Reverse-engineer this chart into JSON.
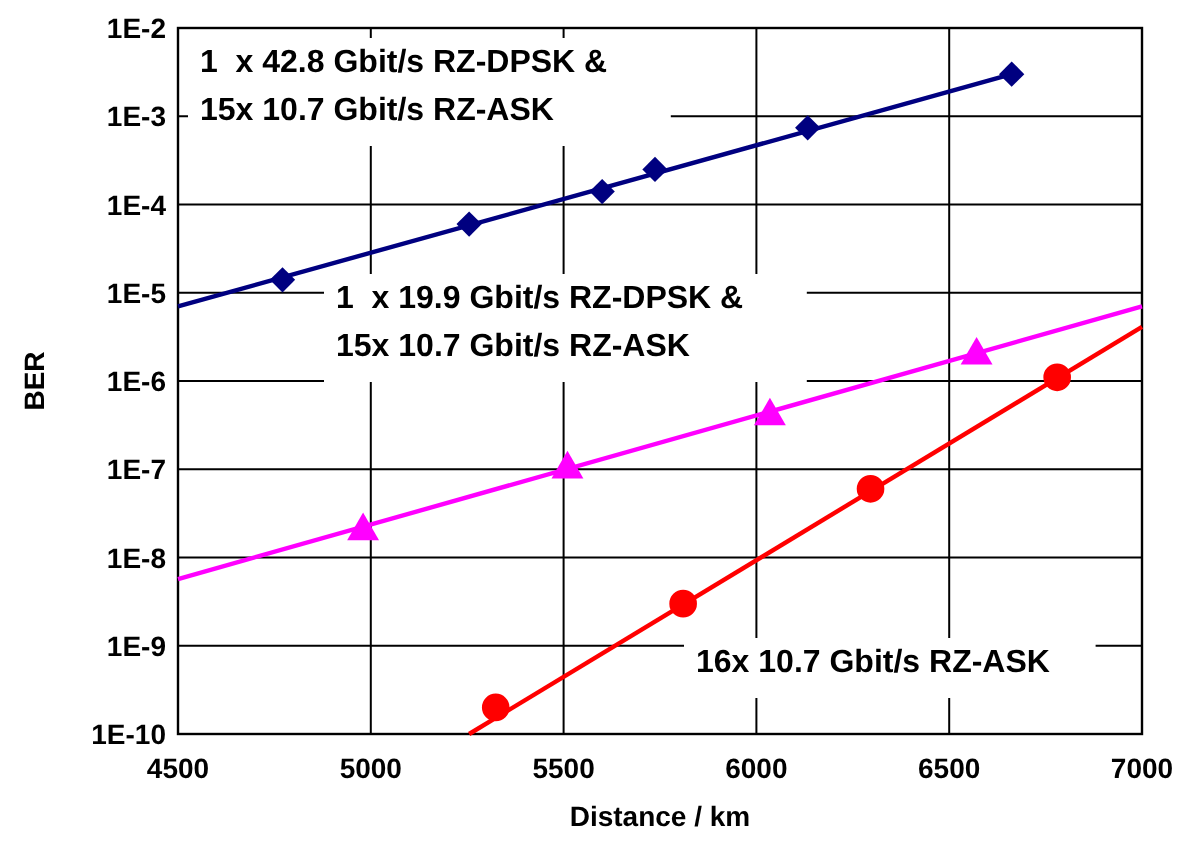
{
  "chart_data": {
    "type": "scatter",
    "xlabel": "Distance / km",
    "ylabel": "BER",
    "log": "y",
    "grid": true,
    "xlim": [
      4500,
      7000
    ],
    "xticks": [
      4500,
      5000,
      5500,
      6000,
      6500,
      7000
    ],
    "ylim": [
      1e-10,
      0.01
    ],
    "yticks": [
      {
        "value": 1e-10,
        "label": "1E-10"
      },
      {
        "value": 1e-09,
        "label": "1E-9"
      },
      {
        "value": 1e-08,
        "label": "1E-8"
      },
      {
        "value": 1e-07,
        "label": "1E-7"
      },
      {
        "value": 1e-06,
        "label": "1E-6"
      },
      {
        "value": 1e-05,
        "label": "1E-5"
      },
      {
        "value": 0.0001,
        "label": "1E-4"
      },
      {
        "value": 0.001,
        "label": "1E-3"
      },
      {
        "value": 0.01,
        "label": "1E-2"
      }
    ],
    "series": [
      {
        "type": "line",
        "color": "#000080",
        "x": [
          4500,
          6662
        ],
        "values": [
          7e-06,
          0.003
        ]
      },
      {
        "type": "line",
        "color": "#ff00ff",
        "x": [
          4500,
          7000
        ],
        "values": [
          5.7e-09,
          7e-06
        ]
      },
      {
        "type": "line",
        "color": "#ff0000",
        "x": [
          5255,
          7000
        ],
        "values": [
          1e-10,
          4.1e-06
        ]
      },
      {
        "name": "1  x 42.8 Gbit/s RZ-DPSK &\n15x 10.7 Gbit/s RZ-ASK",
        "color": "#000080",
        "marker": "diamond",
        "x": [
          4771,
          5255,
          5600,
          5737,
          6133,
          6662
        ],
        "values": [
          1.4e-05,
          6e-05,
          0.00014,
          0.00025,
          0.00074,
          0.003
        ]
      },
      {
        "name": "1  x 19.9 Gbit/s RZ-DPSK &\n15x 10.7 Gbit/s RZ-ASK",
        "color": "#ff00ff",
        "marker": "triangle",
        "x": [
          4980,
          5510,
          6035,
          6571
        ],
        "values": [
          2e-08,
          1e-07,
          4e-07,
          1.95e-06
        ]
      },
      {
        "name": "16x 10.7 Gbit/s RZ-ASK",
        "color": "#ff0000",
        "marker": "circle",
        "x": [
          5324,
          5810,
          6296,
          6780
        ],
        "values": [
          2e-10,
          3e-09,
          6e-08,
          1.1e-06
        ]
      }
    ]
  }
}
